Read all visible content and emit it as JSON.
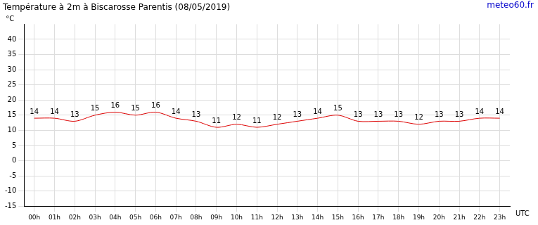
{
  "chart_data": {
    "type": "line",
    "title": "Température à 2m à Biscarosse Parentis (08/05/2019)",
    "annotations": [
      "meteo60.fr"
    ],
    "y_label": "°C",
    "x_label": "UTC",
    "categories": [
      "00h",
      "01h",
      "02h",
      "03h",
      "04h",
      "05h",
      "06h",
      "07h",
      "08h",
      "09h",
      "10h",
      "11h",
      "12h",
      "13h",
      "14h",
      "15h",
      "16h",
      "17h",
      "18h",
      "19h",
      "20h",
      "21h",
      "22h",
      "23h"
    ],
    "values": [
      14,
      14,
      13,
      15,
      16,
      15,
      16,
      14,
      13,
      11,
      12,
      11,
      12,
      13,
      14,
      15,
      13,
      13,
      13,
      12,
      13,
      13,
      14,
      14
    ],
    "color": "#dd0000",
    "marker": "none",
    "ylim": [
      -15,
      45
    ],
    "yticks": [
      -15,
      -10,
      -5,
      0,
      5,
      10,
      15,
      20,
      25,
      30,
      35,
      40
    ],
    "grid": true,
    "data_labels": true
  }
}
